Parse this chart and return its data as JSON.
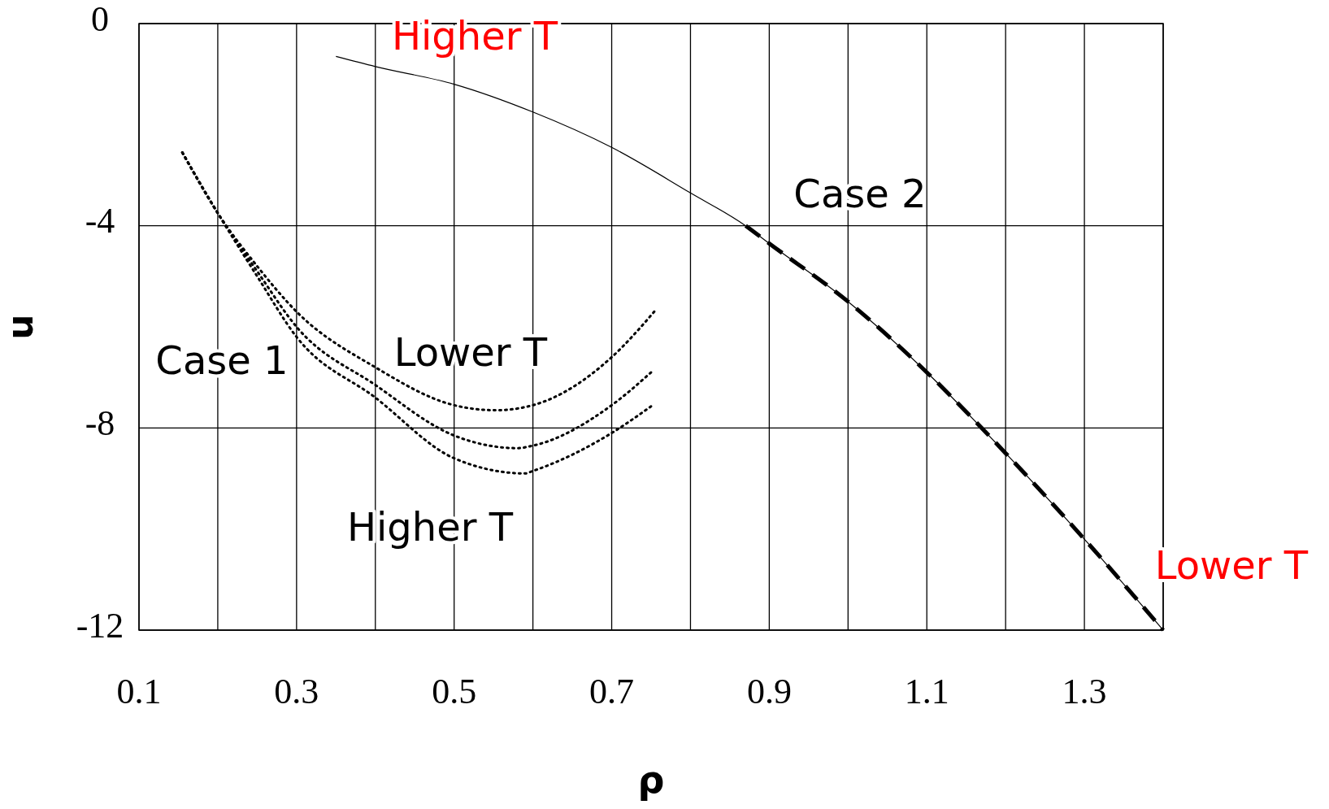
{
  "chart_data": {
    "type": "line",
    "xlabel": "ρ",
    "ylabel": "u",
    "xlim": [
      0.1,
      1.4
    ],
    "ylim": [
      -12,
      0
    ],
    "xticks": [
      0.1,
      {
        "value": 0.2,
        "label": null
      },
      0.3,
      {
        "value": 0.4,
        "label": null
      },
      0.5,
      {
        "value": 0.6,
        "label": null
      },
      0.7,
      {
        "value": 0.8,
        "label": null
      },
      0.9,
      {
        "value": 1.0,
        "label": null
      },
      1.1,
      {
        "value": 1.2,
        "label": null
      },
      1.3,
      {
        "value": 1.4,
        "label": null
      }
    ],
    "yticks": [
      0,
      -4,
      -8,
      -12
    ],
    "grid": true,
    "marker": "none",
    "series": [
      {
        "color": "#000000",
        "line_style": "solid",
        "x": [
          0.35,
          0.4,
          0.5,
          0.6,
          0.7,
          0.8,
          0.87,
          0.9,
          1.0,
          1.1,
          1.2,
          1.3,
          1.4
        ],
        "values": [
          -0.65,
          -0.85,
          -1.2,
          -1.75,
          -2.45,
          -3.35,
          -4.0,
          -4.35,
          -5.5,
          -6.9,
          -8.5,
          -10.2,
          -12
        ]
      },
      {
        "color": "#000000",
        "line_style": "dashed",
        "x": [
          0.87,
          0.9,
          1.0,
          1.1,
          1.2,
          1.3,
          1.4
        ],
        "values": [
          -4.0,
          -4.35,
          -5.5,
          -6.9,
          -8.5,
          -10.2,
          -12
        ]
      },
      {
        "color": "#000000",
        "line_style": "dotted",
        "x": [
          0.155,
          0.2,
          0.25,
          0.3,
          0.4,
          0.5,
          0.553,
          0.6,
          0.7,
          0.754
        ],
        "values": [
          -2.55,
          -3.75,
          -4.8,
          -5.7,
          -6.8,
          -7.55,
          -7.65,
          -7.55,
          -6.6,
          -5.7
        ]
      },
      {
        "color": "#000000",
        "line_style": "dotted",
        "x": [
          0.155,
          0.2,
          0.25,
          0.3,
          0.4,
          0.5,
          0.58,
          0.6,
          0.7,
          0.75
        ],
        "values": [
          -2.55,
          -3.75,
          -4.9,
          -6.0,
          -7.15,
          -8.15,
          -8.4,
          -8.35,
          -7.55,
          -6.9
        ]
      },
      {
        "color": "#000000",
        "line_style": "dotted",
        "x": [
          0.155,
          0.2,
          0.25,
          0.3,
          0.4,
          0.5,
          0.59,
          0.6,
          0.7,
          0.752
        ],
        "values": [
          -2.55,
          -3.75,
          -5.0,
          -6.2,
          -7.4,
          -8.6,
          -8.9,
          -8.85,
          -8.1,
          -7.55
        ]
      }
    ],
    "annotations": [
      "Higher T",
      "Case 2",
      "Case 1",
      "Lower T",
      "Higher T",
      "Lower T"
    ]
  }
}
